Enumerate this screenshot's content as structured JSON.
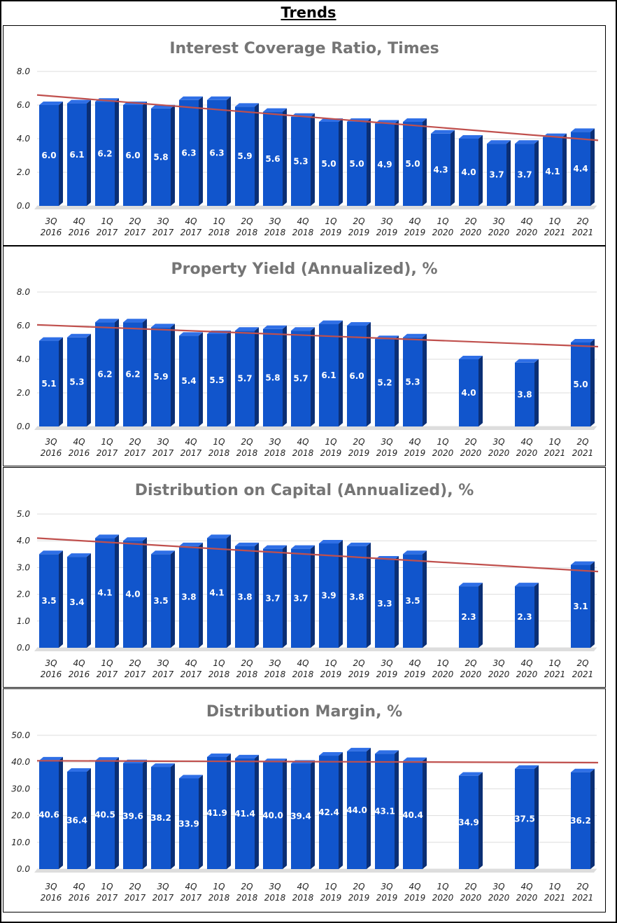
{
  "page_title": "Trends",
  "colors": {
    "bar_front": "#1155CC",
    "bar_side": "#0B2F75",
    "bar_top": "#2F6FE6",
    "trend": "#C0504D",
    "grid": "#DDDDDD",
    "floor": "#DDDDDD"
  },
  "chart_data": [
    {
      "type": "bar",
      "title": "Interest Coverage Ratio, Times",
      "categories": [
        [
          "3Q",
          "2016"
        ],
        [
          "4Q",
          "2016"
        ],
        [
          "1Q",
          "2017"
        ],
        [
          "2Q",
          "2017"
        ],
        [
          "3Q",
          "2017"
        ],
        [
          "4Q",
          "2017"
        ],
        [
          "1Q",
          "2018"
        ],
        [
          "2Q",
          "2018"
        ],
        [
          "3Q",
          "2018"
        ],
        [
          "4Q",
          "2018"
        ],
        [
          "1Q",
          "2019"
        ],
        [
          "2Q",
          "2019"
        ],
        [
          "3Q",
          "2019"
        ],
        [
          "4Q",
          "2019"
        ],
        [
          "1Q",
          "2020"
        ],
        [
          "2Q",
          "2020"
        ],
        [
          "3Q",
          "2020"
        ],
        [
          "4Q",
          "2020"
        ],
        [
          "1Q",
          "2021"
        ],
        [
          "2Q",
          "2021"
        ]
      ],
      "values": [
        6.0,
        6.1,
        6.2,
        6.0,
        5.8,
        6.3,
        6.3,
        5.9,
        5.6,
        5.3,
        5.0,
        5.0,
        4.9,
        5.0,
        4.3,
        4.0,
        3.7,
        3.7,
        4.1,
        4.4
      ],
      "labels": [
        "6.0",
        "6.1",
        "6.2",
        "6.0",
        "5.8",
        "6.3",
        "6.3",
        "5.9",
        "5.6",
        "5.3",
        "5.0",
        "5.0",
        "4.9",
        "5.0",
        "4.3",
        "4.0",
        "3.7",
        "3.7",
        "4.1",
        "4.4"
      ],
      "yticks": [
        "0.0",
        "2.0",
        "4.0",
        "6.0",
        "8.0"
      ],
      "ylim": [
        0,
        8
      ],
      "trendline": [
        6.6,
        3.9
      ]
    },
    {
      "type": "bar",
      "title": "Property Yield (Annualized), %",
      "categories": [
        [
          "3Q",
          "2016"
        ],
        [
          "4Q",
          "2016"
        ],
        [
          "1Q",
          "2017"
        ],
        [
          "2Q",
          "2017"
        ],
        [
          "3Q",
          "2017"
        ],
        [
          "4Q",
          "2017"
        ],
        [
          "1Q",
          "2018"
        ],
        [
          "2Q",
          "2018"
        ],
        [
          "3Q",
          "2018"
        ],
        [
          "4Q",
          "2018"
        ],
        [
          "1Q",
          "2019"
        ],
        [
          "2Q",
          "2019"
        ],
        [
          "3Q",
          "2019"
        ],
        [
          "4Q",
          "2019"
        ],
        [
          "1Q",
          "2020"
        ],
        [
          "2Q",
          "2020"
        ],
        [
          "3Q",
          "2020"
        ],
        [
          "4Q",
          "2020"
        ],
        [
          "1Q",
          "2021"
        ],
        [
          "2Q",
          "2021"
        ]
      ],
      "values": [
        5.1,
        5.3,
        6.2,
        6.2,
        5.9,
        5.4,
        5.5,
        5.7,
        5.8,
        5.7,
        6.1,
        6.0,
        5.2,
        5.3,
        null,
        4.0,
        null,
        3.8,
        null,
        5.0
      ],
      "labels": [
        "5.1",
        "5.3",
        "6.2",
        "6.2",
        "5.9",
        "5.4",
        "5.5",
        "5.7",
        "5.8",
        "5.7",
        "6.1",
        "6.0",
        "5.2",
        "5.3",
        null,
        "4.0",
        null,
        "3.8",
        null,
        "5.0"
      ],
      "yticks": [
        "0.0",
        "2.0",
        "4.0",
        "6.0",
        "8.0"
      ],
      "ylim": [
        0,
        8
      ],
      "trendline": [
        6.05,
        4.75
      ]
    },
    {
      "type": "bar",
      "title": "Distribution on Capital (Annualized), %",
      "categories": [
        [
          "3Q",
          "2016"
        ],
        [
          "4Q",
          "2016"
        ],
        [
          "1Q",
          "2017"
        ],
        [
          "2Q",
          "2017"
        ],
        [
          "3Q",
          "2017"
        ],
        [
          "4Q",
          "2017"
        ],
        [
          "1Q",
          "2018"
        ],
        [
          "2Q",
          "2018"
        ],
        [
          "3Q",
          "2018"
        ],
        [
          "4Q",
          "2018"
        ],
        [
          "1Q",
          "2019"
        ],
        [
          "2Q",
          "2019"
        ],
        [
          "3Q",
          "2019"
        ],
        [
          "4Q",
          "2019"
        ],
        [
          "1Q",
          "2020"
        ],
        [
          "2Q",
          "2020"
        ],
        [
          "3Q",
          "2020"
        ],
        [
          "4Q",
          "2020"
        ],
        [
          "1Q",
          "2021"
        ],
        [
          "2Q",
          "2021"
        ]
      ],
      "values": [
        3.5,
        3.4,
        4.1,
        4.0,
        3.5,
        3.8,
        4.1,
        3.8,
        3.7,
        3.7,
        3.9,
        3.8,
        3.3,
        3.5,
        null,
        2.3,
        null,
        2.3,
        null,
        3.1
      ],
      "labels": [
        "3.5",
        "3.4",
        "4.1",
        "4.0",
        "3.5",
        "3.8",
        "4.1",
        "3.8",
        "3.7",
        "3.7",
        "3.9",
        "3.8",
        "3.3",
        "3.5",
        null,
        "2.3",
        null,
        "2.3",
        null,
        "3.1"
      ],
      "yticks": [
        "0.0",
        "1.0",
        "2.0",
        "3.0",
        "4.0",
        "5.0"
      ],
      "ylim": [
        0,
        5
      ],
      "trendline": [
        4.1,
        2.85
      ]
    },
    {
      "type": "bar",
      "title": "Distribution Margin, %",
      "categories": [
        [
          "3Q",
          "2016"
        ],
        [
          "4Q",
          "2016"
        ],
        [
          "1Q",
          "2017"
        ],
        [
          "2Q",
          "2017"
        ],
        [
          "3Q",
          "2017"
        ],
        [
          "4Q",
          "2017"
        ],
        [
          "1Q",
          "2018"
        ],
        [
          "2Q",
          "2018"
        ],
        [
          "3Q",
          "2018"
        ],
        [
          "4Q",
          "2018"
        ],
        [
          "1Q",
          "2019"
        ],
        [
          "2Q",
          "2019"
        ],
        [
          "3Q",
          "2019"
        ],
        [
          "4Q",
          "2019"
        ],
        [
          "1Q",
          "2020"
        ],
        [
          "2Q",
          "2020"
        ],
        [
          "3Q",
          "2020"
        ],
        [
          "4Q",
          "2020"
        ],
        [
          "1Q",
          "2021"
        ],
        [
          "2Q",
          "2021"
        ]
      ],
      "values": [
        40.6,
        36.4,
        40.5,
        39.6,
        38.2,
        33.9,
        41.9,
        41.4,
        40.0,
        39.4,
        42.4,
        44.0,
        43.1,
        40.4,
        null,
        34.9,
        null,
        37.5,
        null,
        36.2
      ],
      "labels": [
        "40.6",
        "36.4",
        "40.5",
        "39.6",
        "38.2",
        "33.9",
        "41.9",
        "41.4",
        "40.0",
        "39.4",
        "42.4",
        "44.0",
        "43.1",
        "40.4",
        null,
        "34.9",
        null,
        "37.5",
        null,
        "36.2"
      ],
      "yticks": [
        "0.0",
        "10.0",
        "20.0",
        "30.0",
        "40.0",
        "50.0"
      ],
      "ylim": [
        0,
        50
      ],
      "trendline": [
        40.5,
        39.8
      ]
    }
  ]
}
